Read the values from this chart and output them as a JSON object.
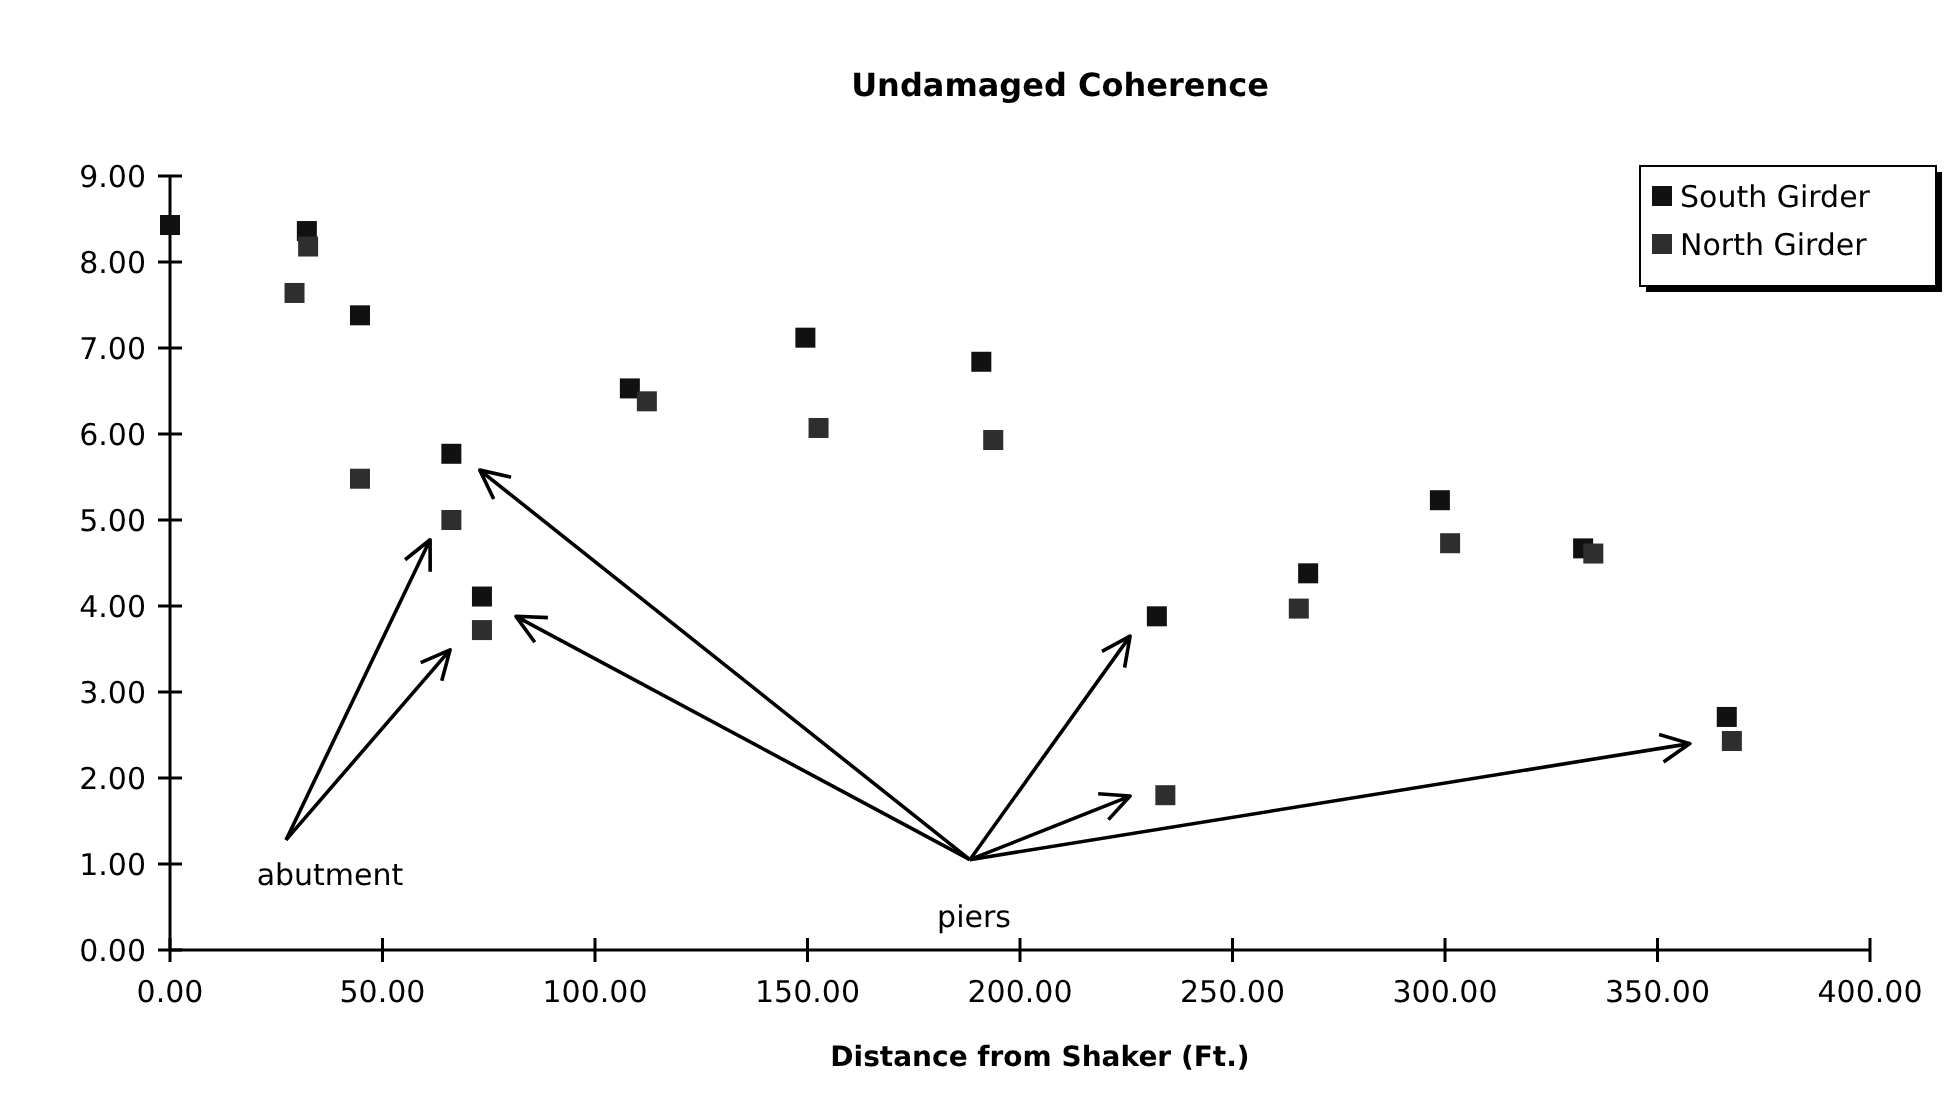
{
  "chart_data": {
    "type": "scatter",
    "title": "Undamaged Coherence",
    "xlabel": "Distance from Shaker (Ft.)",
    "xlim": [
      0,
      400
    ],
    "xticks": [
      {
        "value": 0,
        "label": "0.00"
      },
      {
        "value": 50,
        "label": "50.00"
      },
      {
        "value": 100,
        "label": "100.00"
      },
      {
        "value": 150,
        "label": "150.00"
      },
      {
        "value": 200,
        "label": "200.00"
      },
      {
        "value": 250,
        "label": "250.00"
      },
      {
        "value": 300,
        "label": "300.00"
      },
      {
        "value": 350,
        "label": "350.00"
      },
      {
        "value": 400,
        "label": "400.00"
      }
    ],
    "ylim": [
      0,
      9
    ],
    "yticks": [
      {
        "value": 0,
        "label": "0.00"
      },
      {
        "value": 1,
        "label": "1.00"
      },
      {
        "value": 2,
        "label": "2.00"
      },
      {
        "value": 3,
        "label": "3.00"
      },
      {
        "value": 4,
        "label": "4.00"
      },
      {
        "value": 5,
        "label": "5.00"
      },
      {
        "value": 6,
        "label": "6.00"
      },
      {
        "value": 7,
        "label": "7.00"
      },
      {
        "value": 8,
        "label": "8.00"
      },
      {
        "value": 9,
        "label": "9.00"
      }
    ],
    "grid": false,
    "legend": "top right",
    "marker": "square",
    "series": [
      {
        "name": "South Girder",
        "color": "#111111",
        "x": [
          0,
          32.2,
          44.7,
          66.2,
          73.4,
          108.2,
          149.5,
          190.9,
          232.2,
          267.8,
          298.8,
          332.5,
          366.3
        ],
        "values": [
          8.43,
          8.36,
          7.38,
          5.77,
          4.11,
          6.53,
          7.12,
          6.84,
          3.88,
          4.38,
          5.23,
          4.67,
          2.71
        ]
      },
      {
        "name": "North Girder",
        "color": "#2e2e2e",
        "x": [
          29.3,
          32.5,
          44.7,
          66.2,
          73.4,
          112.2,
          152.6,
          193.7,
          234.2,
          265.6,
          301.2,
          334.9,
          367.5
        ],
        "values": [
          7.64,
          8.18,
          5.48,
          5.0,
          3.72,
          6.38,
          6.07,
          5.93,
          1.8,
          3.97,
          4.73,
          4.61,
          2.43
        ]
      }
    ],
    "annotations": [
      "abutment",
      "piers"
    ]
  }
}
